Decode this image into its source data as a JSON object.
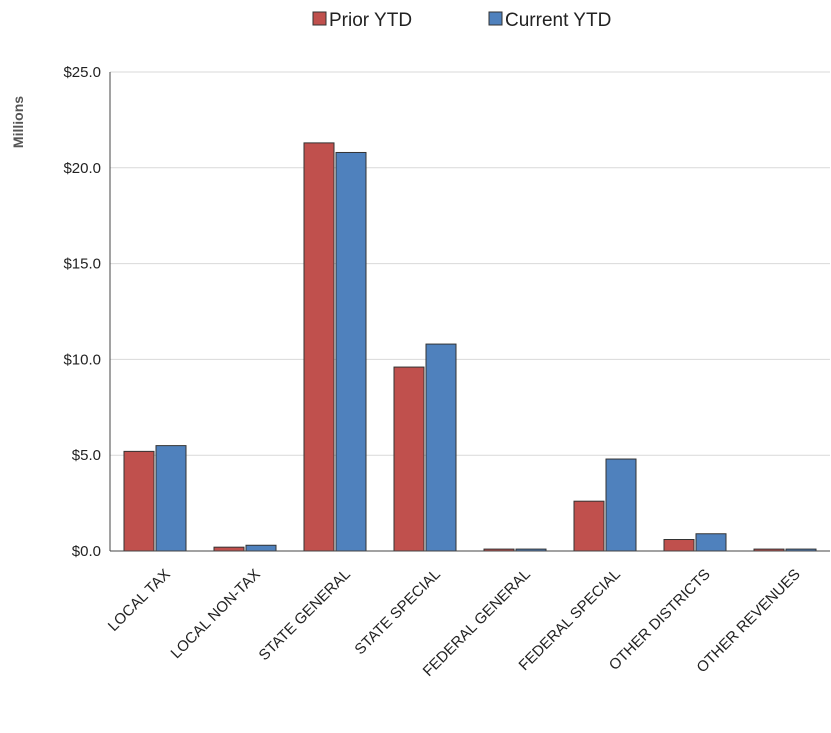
{
  "chart_data": {
    "type": "bar",
    "title": "",
    "xlabel": "",
    "ylabel": "Millions",
    "ylim": [
      0,
      25
    ],
    "ytick_values": [
      0,
      5,
      10,
      15,
      20,
      25
    ],
    "ytick_labels": [
      "$0.0",
      "$5.0",
      "$10.0",
      "$15.0",
      "$20.0",
      "$25.0"
    ],
    "grid": true,
    "legend_position": "top-center",
    "categories": [
      "LOCAL TAX",
      "LOCAL NON-TAX",
      "STATE GENERAL",
      "STATE SPECIAL",
      "FEDERAL GENERAL",
      "FEDERAL SPECIAL",
      "OTHER DISTRICTS",
      "OTHER REVENUES"
    ],
    "series": [
      {
        "name": "Prior YTD",
        "color": "#C0504D",
        "values": [
          5.2,
          0.2,
          21.3,
          9.6,
          0.1,
          2.6,
          0.6,
          0.1
        ]
      },
      {
        "name": "Current YTD",
        "color": "#4F81BD",
        "values": [
          5.5,
          0.3,
          20.8,
          10.8,
          0.1,
          4.8,
          0.9,
          0.1
        ]
      }
    ]
  }
}
